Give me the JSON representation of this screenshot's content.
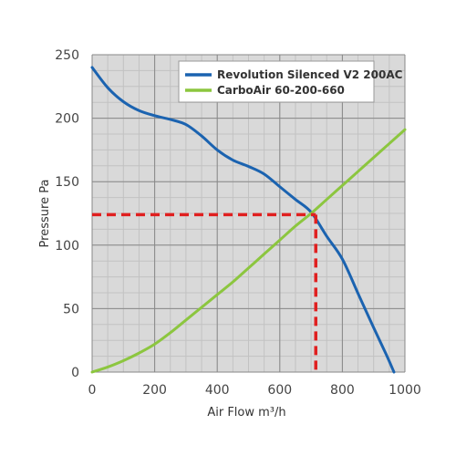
{
  "chart_data": {
    "type": "line",
    "xlabel": "Air Flow m³/h",
    "ylabel": "Pressure Pa",
    "xlim": [
      0,
      1000
    ],
    "ylim": [
      0,
      250
    ],
    "x_ticks": [
      0,
      200,
      400,
      600,
      800,
      1000
    ],
    "y_ticks": [
      0,
      50,
      100,
      150,
      200,
      250
    ],
    "grid": true,
    "legend_position": "top-right",
    "series": [
      {
        "name": "Revolution Silenced V2 200AC",
        "color": "#1b63b0",
        "x": [
          0,
          50,
          100,
          150,
          200,
          250,
          300,
          350,
          400,
          450,
          500,
          550,
          600,
          650,
          700,
          750,
          800,
          850,
          900,
          940,
          965
        ],
        "y": [
          240,
          224,
          213,
          206,
          202,
          199,
          195,
          186,
          175,
          167,
          162,
          156,
          146,
          136,
          126,
          107,
          89,
          62,
          35,
          14,
          0
        ]
      },
      {
        "name": "CarboAir 60-200-660",
        "color": "#8cc63f",
        "x": [
          0,
          50,
          100,
          150,
          200,
          250,
          300,
          350,
          400,
          450,
          500,
          550,
          600,
          650,
          700,
          750,
          800,
          850,
          900,
          950,
          1000
        ],
        "y": [
          0,
          4,
          9,
          15,
          22,
          31,
          41,
          51,
          61,
          71,
          82,
          93,
          104,
          115,
          125,
          136,
          147,
          158,
          169,
          180,
          191
        ]
      }
    ],
    "operating_point": {
      "x": 715,
      "y": 124,
      "color": "#e02020"
    }
  }
}
